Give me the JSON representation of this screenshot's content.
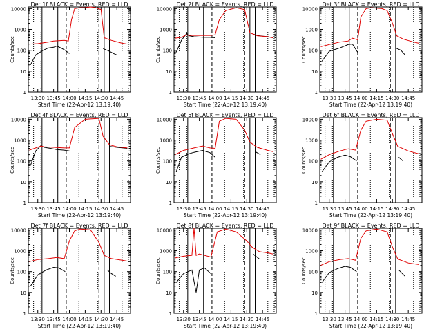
{
  "figure": {
    "ylabel": "Counts/sec",
    "xlabel_prefix": "Start Time (22-Apr-12 13:19:40)"
  },
  "colors": {
    "black_series": "#000000",
    "red_series": "#e00000"
  },
  "axes": {
    "xlim": [
      "13:21",
      "14:58"
    ],
    "ylim": [
      1,
      12000
    ],
    "yscale": "log",
    "x_ticks": [
      "13:30",
      "13:45",
      "14:00",
      "14:15",
      "14:30",
      "14:45"
    ],
    "y_ticks": [
      "1",
      "10",
      "100",
      "1000",
      "10000"
    ]
  },
  "chart_data": [
    {
      "type": "line",
      "title": "Det 1f BLACK = Events, RED = LLD",
      "xlabel": "Start Time (22-Apr-12 13:19:40)",
      "ylabel": "Counts/sec",
      "series": [
        {
          "name": "Events",
          "color": "#000000",
          "x": [
            "13:23",
            "13:28",
            "13:35",
            "13:40",
            "13:45",
            "13:48",
            "13:52",
            "13:56",
            "14:00",
            "14:02",
            "14:30",
            "14:32",
            "14:38",
            "14:42",
            "14:45"
          ],
          "y": [
            20,
            60,
            100,
            130,
            140,
            160,
            130,
            100,
            70,
            null,
            null,
            120,
            90,
            70,
            60
          ]
        },
        {
          "name": "LLD",
          "color": "#e00000",
          "x": [
            "13:22",
            "13:30",
            "13:40",
            "13:45",
            "13:55",
            "13:59",
            "14:02",
            "14:05",
            "14:10",
            "14:15",
            "14:20",
            "14:25",
            "14:30",
            "14:33",
            "14:40",
            "14:50",
            "14:55"
          ],
          "y": [
            200,
            210,
            250,
            280,
            300,
            280,
            3000,
            10000,
            11000,
            11000,
            12000,
            11000,
            9000,
            400,
            300,
            220,
            200
          ]
        }
      ],
      "vlines_dotted": [
        "13:26",
        "13:33",
        "14:09",
        "14:27",
        "14:50",
        "14:56"
      ],
      "vlines_solid": [
        "13:34",
        "13:49",
        "14:33",
        "14:38"
      ],
      "vlines_dashed": [
        "13:57",
        "14:28"
      ]
    },
    {
      "type": "line",
      "title": "Det 2f BLACK = Events, RED = LLD",
      "xlabel": "Start Time (22-Apr-12 13:19:40)",
      "ylabel": "Counts/sec",
      "series": [
        {
          "name": "Events",
          "color": "#000000",
          "x": [
            "13:23",
            "13:28",
            "13:33",
            "13:35",
            "13:40",
            "13:50",
            "13:56",
            "14:00",
            "14:32",
            "14:36",
            "14:42",
            "14:50",
            "14:55"
          ],
          "y": [
            80,
            300,
            650,
            500,
            450,
            420,
            420,
            400,
            null,
            600,
            500,
            450,
            400
          ]
        },
        {
          "name": "LLD",
          "color": "#e00000",
          "x": [
            "13:22",
            "13:28",
            "13:33",
            "13:35",
            "13:40",
            "13:50",
            "13:56",
            "14:00",
            "14:04",
            "14:10",
            "14:20",
            "14:28",
            "14:33",
            "14:40",
            "14:50",
            "14:55"
          ],
          "y": [
            380,
            420,
            560,
            520,
            520,
            520,
            520,
            560,
            3000,
            8000,
            11000,
            9000,
            700,
            500,
            450,
            400
          ]
        }
      ],
      "vlines_dotted": [
        "13:26",
        "13:33",
        "14:09",
        "14:27",
        "14:50",
        "14:56"
      ],
      "vlines_solid": [
        "13:34",
        "13:49",
        "14:33",
        "14:38"
      ],
      "vlines_dashed": [
        "13:57",
        "14:28"
      ]
    },
    {
      "type": "line",
      "title": "Det 3f BLACK = Events, RED = LLD",
      "xlabel": "Start Time (22-Apr-12 13:19:40)",
      "ylabel": "Counts/sec",
      "series": [
        {
          "name": "Events",
          "color": "#000000",
          "x": [
            "13:23",
            "13:30",
            "13:40",
            "13:48",
            "13:52",
            "13:57",
            "14:30",
            "14:33",
            "14:38",
            "14:42"
          ],
          "y": [
            30,
            90,
            130,
            190,
            200,
            80,
            null,
            130,
            100,
            60
          ]
        },
        {
          "name": "LLD",
          "color": "#e00000",
          "x": [
            "13:22",
            "13:30",
            "13:40",
            "13:48",
            "13:52",
            "13:57",
            "14:00",
            "14:05",
            "14:10",
            "14:20",
            "14:25",
            "14:30",
            "14:34",
            "14:40",
            "14:50",
            "14:55"
          ],
          "y": [
            150,
            190,
            250,
            280,
            380,
            320,
            4000,
            10000,
            11000,
            10000,
            8000,
            2000,
            500,
            350,
            250,
            220
          ]
        }
      ],
      "vlines_dotted": [
        "13:26",
        "13:33",
        "14:09",
        "14:27",
        "14:50",
        "14:56"
      ],
      "vlines_solid": [
        "13:34",
        "13:49",
        "14:33",
        "14:38"
      ],
      "vlines_dashed": [
        "13:57",
        "14:28"
      ]
    },
    {
      "type": "line",
      "title": "Det 4f BLACK = Events, RED = LLD",
      "xlabel": "Start Time (22-Apr-12 13:19:40)",
      "ylabel": "Counts/sec",
      "series": [
        {
          "name": "Events",
          "color": "#000000",
          "x": [
            "13:23",
            "13:28",
            "13:33",
            "13:36",
            "13:42",
            "13:48",
            "13:55",
            "14:00",
            "14:33",
            "14:38",
            "14:45",
            "14:55"
          ],
          "y": [
            60,
            300,
            550,
            450,
            400,
            350,
            330,
            300,
            null,
            500,
            450,
            400
          ]
        },
        {
          "name": "LLD",
          "color": "#e00000",
          "x": [
            "13:22",
            "13:28",
            "13:33",
            "13:36",
            "13:42",
            "13:48",
            "13:55",
            "14:00",
            "14:05",
            "14:15",
            "14:28",
            "14:32",
            "14:38",
            "14:45",
            "14:55"
          ],
          "y": [
            330,
            420,
            520,
            480,
            460,
            440,
            420,
            420,
            4000,
            10000,
            11000,
            1500,
            600,
            480,
            420
          ]
        }
      ],
      "vlines_dotted": [
        "13:26",
        "13:33",
        "14:09",
        "14:27",
        "14:50",
        "14:56"
      ],
      "vlines_solid": [
        "13:34",
        "13:49",
        "14:33",
        "14:38"
      ],
      "vlines_dashed": [
        "13:57",
        "14:28"
      ]
    },
    {
      "type": "line",
      "title": "Det 5f BLACK = Events, RED = LLD",
      "xlabel": "Start Time (22-Apr-12 13:19:40)",
      "ylabel": "Counts/sec",
      "series": [
        {
          "name": "Events",
          "color": "#000000",
          "x": [
            "13:23",
            "13:28",
            "13:35",
            "13:40",
            "13:48",
            "13:55",
            "14:00",
            "14:33",
            "14:38",
            "14:43"
          ],
          "y": [
            30,
            150,
            220,
            260,
            320,
            250,
            150,
            null,
            280,
            200
          ]
        },
        {
          "name": "LLD",
          "color": "#e00000",
          "x": [
            "13:22",
            "13:30",
            "13:40",
            "13:48",
            "13:55",
            "14:00",
            "14:04",
            "14:10",
            "14:20",
            "14:28",
            "14:33",
            "14:40",
            "14:50",
            "14:55"
          ],
          "y": [
            200,
            320,
            420,
            520,
            420,
            400,
            8000,
            11000,
            10000,
            3000,
            800,
            450,
            320,
            280
          ]
        }
      ],
      "vlines_dotted": [
        "13:26",
        "13:33",
        "14:09",
        "14:27",
        "14:50",
        "14:56"
      ],
      "vlines_solid": [
        "13:34",
        "13:49",
        "14:33",
        "14:38"
      ],
      "vlines_dashed": [
        "13:57",
        "14:28"
      ]
    },
    {
      "type": "line",
      "title": "Det 6f BLACK = Events, RED = LLD",
      "xlabel": "Start Time (22-Apr-12 13:19:40)",
      "ylabel": "Counts/sec",
      "series": [
        {
          "name": "Events",
          "color": "#000000",
          "x": [
            "13:23",
            "13:30",
            "13:38",
            "13:45",
            "13:50",
            "13:56",
            "14:32",
            "14:36",
            "14:40"
          ],
          "y": [
            30,
            90,
            150,
            190,
            160,
            100,
            null,
            150,
            100
          ]
        },
        {
          "name": "LLD",
          "color": "#e00000",
          "x": [
            "13:22",
            "13:30",
            "13:40",
            "13:48",
            "13:55",
            "14:00",
            "14:05",
            "14:15",
            "14:25",
            "14:30",
            "14:35",
            "14:45",
            "14:55"
          ],
          "y": [
            120,
            200,
            300,
            380,
            330,
            3000,
            8000,
            10000,
            9000,
            2000,
            500,
            300,
            220
          ]
        }
      ],
      "vlines_dotted": [
        "13:26",
        "13:33",
        "14:09",
        "14:27",
        "14:50",
        "14:56"
      ],
      "vlines_solid": [
        "13:34",
        "13:49",
        "14:33",
        "14:38"
      ],
      "vlines_dashed": [
        "13:57",
        "14:28"
      ]
    },
    {
      "type": "line",
      "title": "Det 7f BLACK = Events, RED = LLD",
      "xlabel": "Start Time (22-Apr-12 13:19:40)",
      "ylabel": "Counts/sec",
      "series": [
        {
          "name": "Events",
          "color": "#000000",
          "x": [
            "13:23",
            "13:30",
            "13:38",
            "13:45",
            "13:50",
            "13:56",
            "14:32",
            "14:36",
            "14:40",
            "14:44"
          ],
          "y": [
            20,
            70,
            120,
            160,
            150,
            100,
            null,
            120,
            80,
            60
          ]
        },
        {
          "name": "LLD",
          "color": "#e00000",
          "x": [
            "13:22",
            "13:30",
            "13:40",
            "13:48",
            "13:55",
            "14:00",
            "14:05",
            "14:10",
            "14:20",
            "14:28",
            "14:33",
            "14:40",
            "14:50",
            "14:55"
          ],
          "y": [
            300,
            380,
            420,
            480,
            420,
            3000,
            9000,
            11000,
            10000,
            2500,
            600,
            420,
            350,
            320
          ]
        }
      ],
      "vlines_dotted": [
        "13:26",
        "13:33",
        "14:09",
        "14:27",
        "14:50",
        "14:56"
      ],
      "vlines_solid": [
        "13:34",
        "13:49",
        "14:33",
        "14:38"
      ],
      "vlines_dashed": [
        "13:57",
        "14:28"
      ]
    },
    {
      "type": "line",
      "title": "Det 8f BLACK = Events, RED = LLD",
      "xlabel": "Start Time (22-Apr-12 13:19:40)",
      "ylabel": "Counts/sec",
      "series": [
        {
          "name": "Events",
          "color": "#000000",
          "x": [
            "13:23",
            "13:30",
            "13:38",
            "13:42",
            "13:45",
            "13:50",
            "13:56",
            "14:32",
            "14:36",
            "14:42"
          ],
          "y": [
            30,
            80,
            120,
            10,
            120,
            150,
            80,
            null,
            700,
            400
          ]
        },
        {
          "name": "LLD",
          "color": "#e00000",
          "x": [
            "13:22",
            "13:30",
            "13:38",
            "13:40",
            "13:42",
            "13:45",
            "13:50",
            "13:56",
            "14:02",
            "14:10",
            "14:20",
            "14:30",
            "14:35",
            "14:42",
            "14:50",
            "14:55"
          ],
          "y": [
            450,
            550,
            600,
            12000,
            600,
            700,
            600,
            500,
            8000,
            11000,
            8000,
            3000,
            1500,
            900,
            800,
            700
          ]
        }
      ],
      "vlines_dotted": [
        "13:26",
        "13:33",
        "14:09",
        "14:27",
        "14:50",
        "14:56"
      ],
      "vlines_solid": [
        "13:34",
        "13:49",
        "14:33",
        "14:38"
      ],
      "vlines_dashed": [
        "13:57",
        "14:28"
      ]
    },
    {
      "type": "line",
      "title": "Det 9f BLACK = Events, RED = LLD",
      "xlabel": "Start Time (22-Apr-12 13:19:40)",
      "ylabel": "Counts/sec",
      "series": [
        {
          "name": "Events",
          "color": "#000000",
          "x": [
            "13:23",
            "13:30",
            "13:38",
            "13:45",
            "13:50",
            "13:56",
            "14:32",
            "14:36",
            "14:42"
          ],
          "y": [
            30,
            90,
            140,
            180,
            160,
            100,
            null,
            120,
            60
          ]
        },
        {
          "name": "LLD",
          "color": "#e00000",
          "x": [
            "13:22",
            "13:30",
            "13:40",
            "13:48",
            "13:55",
            "14:00",
            "14:05",
            "14:15",
            "14:25",
            "14:30",
            "14:35",
            "14:45",
            "14:55"
          ],
          "y": [
            200,
            300,
            380,
            420,
            350,
            4000,
            9000,
            11000,
            8000,
            1500,
            400,
            260,
            220
          ]
        }
      ],
      "vlines_dotted": [
        "13:26",
        "13:33",
        "14:09",
        "14:27",
        "14:50",
        "14:56"
      ],
      "vlines_solid": [
        "13:34",
        "13:49",
        "14:33",
        "14:38"
      ],
      "vlines_dashed": [
        "13:57",
        "14:28"
      ]
    }
  ]
}
